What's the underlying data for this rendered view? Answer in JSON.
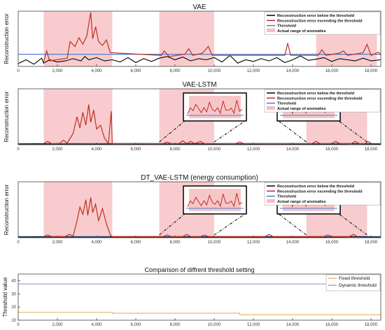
{
  "chart_data": [
    {
      "type": "line",
      "title": "VAE",
      "xlabel": "",
      "ylabel": "Reconstruction error",
      "xlim": [
        0,
        18500
      ],
      "ylim": [
        0,
        1.0
      ],
      "xticks": [
        0,
        2000,
        4000,
        6000,
        8000,
        10000,
        12000,
        14000,
        16000,
        18000
      ],
      "xtick_labels": [
        "0",
        "2,000",
        "4,000",
        "6,000",
        "8,000",
        "10,000",
        "12,000",
        "14,000",
        "16,000",
        "18,000"
      ],
      "legend_position": "top-right",
      "legend": [
        {
          "label": "Reconstruction error below the threshold",
          "color": "#000000",
          "kind": "line"
        },
        {
          "label": "Reconstruction error exceeding the threshold",
          "color": "#c0301f",
          "kind": "line"
        },
        {
          "label": "Threshold",
          "color": "#4a7fd4",
          "kind": "line"
        },
        {
          "label": "Actual range of anomalies",
          "color": "#f4bcc0",
          "kind": "patch"
        }
      ],
      "threshold": 0.22,
      "anomaly_ranges": [
        [
          1300,
          4800
        ],
        [
          7200,
          10000
        ],
        [
          15200,
          18300
        ]
      ],
      "below_series": [
        [
          0,
          0.05
        ],
        [
          400,
          0.12
        ],
        [
          800,
          0.04
        ],
        [
          1200,
          0.15
        ],
        [
          1300,
          0.06
        ],
        [
          1600,
          0.12
        ],
        [
          2000,
          0.08
        ],
        [
          2400,
          0.1
        ],
        [
          2800,
          0.14
        ],
        [
          3200,
          0.1
        ],
        [
          3400,
          0.18
        ],
        [
          3600,
          0.12
        ],
        [
          4000,
          0.16
        ],
        [
          4400,
          0.1
        ],
        [
          4800,
          0.12
        ],
        [
          5200,
          0.08
        ],
        [
          5600,
          0.16
        ],
        [
          6000,
          0.07
        ],
        [
          6400,
          0.14
        ],
        [
          6800,
          0.09
        ],
        [
          7200,
          0.15
        ],
        [
          7600,
          0.18
        ],
        [
          8000,
          0.12
        ],
        [
          8400,
          0.17
        ],
        [
          8800,
          0.1
        ],
        [
          9200,
          0.14
        ],
        [
          9600,
          0.12
        ],
        [
          10000,
          0.16
        ],
        [
          10400,
          0.08
        ],
        [
          10800,
          0.2
        ],
        [
          11200,
          0.06
        ],
        [
          11600,
          0.12
        ],
        [
          12000,
          0.09
        ],
        [
          12400,
          0.14
        ],
        [
          12800,
          0.1
        ],
        [
          13200,
          0.16
        ],
        [
          13600,
          0.07
        ],
        [
          14000,
          0.12
        ],
        [
          14400,
          0.19
        ],
        [
          14800,
          0.11
        ],
        [
          15200,
          0.13
        ],
        [
          15600,
          0.16
        ],
        [
          16000,
          0.09
        ],
        [
          16400,
          0.14
        ],
        [
          16800,
          0.12
        ],
        [
          17200,
          0.1
        ],
        [
          17600,
          0.15
        ],
        [
          18000,
          0.1
        ],
        [
          18500,
          0.12
        ]
      ],
      "above_series": [
        [
          1300,
          0.08
        ],
        [
          1450,
          0.28
        ],
        [
          1600,
          0.1
        ],
        [
          2500,
          0.15
        ],
        [
          2650,
          0.45
        ],
        [
          2900,
          0.36
        ],
        [
          3100,
          0.52
        ],
        [
          3300,
          0.4
        ],
        [
          3500,
          0.55
        ],
        [
          3700,
          0.98
        ],
        [
          3800,
          0.5
        ],
        [
          3950,
          0.72
        ],
        [
          4100,
          0.45
        ],
        [
          4300,
          0.38
        ],
        [
          4500,
          0.48
        ],
        [
          4700,
          0.25
        ],
        [
          7300,
          0.2
        ],
        [
          7450,
          0.28
        ],
        [
          7700,
          0.18
        ],
        [
          8500,
          0.22
        ],
        [
          8700,
          0.32
        ],
        [
          8900,
          0.2
        ],
        [
          9400,
          0.24
        ],
        [
          9700,
          0.36
        ],
        [
          9900,
          0.2
        ],
        [
          13600,
          0.2
        ],
        [
          13750,
          0.42
        ],
        [
          13900,
          0.2
        ],
        [
          15300,
          0.2
        ],
        [
          15500,
          0.3
        ],
        [
          15700,
          0.2
        ],
        [
          16400,
          0.24
        ],
        [
          16600,
          0.28
        ],
        [
          16800,
          0.2
        ],
        [
          17600,
          0.25
        ],
        [
          17800,
          0.4
        ],
        [
          18000,
          0.2
        ],
        [
          18400,
          0.26
        ],
        [
          18500,
          0.2
        ]
      ]
    },
    {
      "type": "line",
      "title": "VAE-LSTM",
      "xlabel": "",
      "ylabel": "Reconstruction error",
      "xlim": [
        0,
        18500
      ],
      "ylim": [
        0,
        1.0
      ],
      "xticks": [
        0,
        2000,
        4000,
        6000,
        8000,
        10000,
        12000,
        14000,
        16000,
        18000
      ],
      "xtick_labels": [
        "0",
        "2,000",
        "4,000",
        "6,000",
        "8,000",
        "10,000",
        "12,000",
        "14,000",
        "16,000",
        "18,000"
      ],
      "legend_position": "top-right",
      "legend": [
        {
          "label": "Reconstruction error below the threshold",
          "color": "#000000",
          "kind": "line"
        },
        {
          "label": "Reconstruction error exceeding the threshold",
          "color": "#c0301f",
          "kind": "line"
        },
        {
          "label": "Threshold",
          "color": "#4a7fd4",
          "kind": "line"
        },
        {
          "label": "Actual range of anomalies",
          "color": "#f4bcc0",
          "kind": "patch"
        }
      ],
      "threshold": 0.02,
      "anomaly_ranges": [
        [
          1300,
          4800
        ],
        [
          7200,
          10000
        ],
        [
          14700,
          17800
        ]
      ],
      "below_series": [
        [
          0,
          0.01
        ],
        [
          1000,
          0.015
        ],
        [
          2000,
          0.01
        ],
        [
          3000,
          0.012
        ],
        [
          4000,
          0.01
        ],
        [
          5000,
          0.015
        ],
        [
          6000,
          0.01
        ],
        [
          7000,
          0.012
        ],
        [
          8000,
          0.01
        ],
        [
          9000,
          0.015
        ],
        [
          10000,
          0.01
        ],
        [
          11000,
          0.012
        ],
        [
          12000,
          0.01
        ],
        [
          13000,
          0.015
        ],
        [
          14000,
          0.01
        ],
        [
          15000,
          0.012
        ],
        [
          16000,
          0.01
        ],
        [
          17000,
          0.015
        ],
        [
          18500,
          0.01
        ]
      ],
      "above_series": [
        [
          1300,
          0.02
        ],
        [
          1500,
          0.06
        ],
        [
          1700,
          0.02
        ],
        [
          2100,
          0.02
        ],
        [
          2300,
          0.08
        ],
        [
          2500,
          0.03
        ],
        [
          2800,
          0.2
        ],
        [
          3000,
          0.5
        ],
        [
          3150,
          0.3
        ],
        [
          3300,
          0.58
        ],
        [
          3450,
          0.35
        ],
        [
          3600,
          0.72
        ],
        [
          3700,
          0.4
        ],
        [
          3850,
          0.62
        ],
        [
          4000,
          0.28
        ],
        [
          4200,
          0.35
        ],
        [
          4400,
          0.12
        ],
        [
          4600,
          0.02
        ],
        [
          4750,
          0.6
        ],
        [
          4800,
          0.02
        ],
        [
          7400,
          0.02
        ],
        [
          7600,
          0.05
        ],
        [
          7800,
          0.02
        ],
        [
          8200,
          0.02
        ],
        [
          8400,
          0.07
        ],
        [
          8600,
          0.02
        ],
        [
          8800,
          0.06
        ],
        [
          9000,
          0.02
        ],
        [
          9300,
          0.06
        ],
        [
          9500,
          0.02
        ],
        [
          11100,
          0.02
        ],
        [
          11300,
          0.05
        ],
        [
          11500,
          0.02
        ],
        [
          15000,
          0.02
        ],
        [
          15200,
          0.06
        ],
        [
          15400,
          0.02
        ],
        [
          16000,
          0.02
        ],
        [
          16200,
          0.06
        ],
        [
          16400,
          0.02
        ],
        [
          17000,
          0.02
        ],
        [
          17200,
          0.06
        ],
        [
          17400,
          0.02
        ],
        [
          17700,
          0.02
        ],
        [
          17850,
          0.06
        ],
        [
          18000,
          0.02
        ]
      ],
      "insets": [
        {
          "x_from": 7200,
          "x_to": 10000
        },
        {
          "x_from": 14700,
          "x_to": 17800
        }
      ]
    },
    {
      "type": "line",
      "title": "DT_VAE-LSTM (energy consumption)",
      "xlabel": "",
      "ylabel": "Reconstruction error",
      "xlim": [
        0,
        18500
      ],
      "ylim": [
        0,
        1.0
      ],
      "xticks": [
        0,
        2000,
        4000,
        6000,
        8000,
        10000,
        12000,
        14000,
        16000,
        18000
      ],
      "xtick_labels": [
        "0",
        "2,000",
        "4,000",
        "6,000",
        "8,000",
        "10,000",
        "12,000",
        "14,000",
        "16,000",
        "18,000"
      ],
      "legend_position": "top-right",
      "legend": [
        {
          "label": "Reconstruction error below the threshold",
          "color": "#000000",
          "kind": "line"
        },
        {
          "label": "Reconstruction error exceeding the threshold",
          "color": "#c0301f",
          "kind": "line"
        },
        {
          "label": "Threshold",
          "color": "#4a7fd4",
          "kind": "line"
        },
        {
          "label": "Actual range of anomalies",
          "color": "#f4bcc0",
          "kind": "patch"
        }
      ],
      "threshold": 0.02,
      "anomaly_ranges": [
        [
          1300,
          4800
        ],
        [
          7200,
          10000
        ],
        [
          14700,
          17800
        ]
      ],
      "below_series": [
        [
          0,
          0.01
        ],
        [
          1000,
          0.015
        ],
        [
          2000,
          0.01
        ],
        [
          3000,
          0.012
        ],
        [
          4000,
          0.01
        ],
        [
          5000,
          0.015
        ],
        [
          6000,
          0.01
        ],
        [
          7000,
          0.012
        ],
        [
          8000,
          0.01
        ],
        [
          9000,
          0.015
        ],
        [
          10000,
          0.01
        ],
        [
          11000,
          0.012
        ],
        [
          12000,
          0.01
        ],
        [
          13000,
          0.015
        ],
        [
          14000,
          0.01
        ],
        [
          15000,
          0.012
        ],
        [
          16000,
          0.01
        ],
        [
          17000,
          0.015
        ],
        [
          18500,
          0.01
        ]
      ],
      "above_series": [
        [
          1300,
          0.02
        ],
        [
          1500,
          0.05
        ],
        [
          1700,
          0.02
        ],
        [
          2400,
          0.02
        ],
        [
          2600,
          0.06
        ],
        [
          2800,
          0.03
        ],
        [
          3000,
          0.3
        ],
        [
          3150,
          0.55
        ],
        [
          3300,
          0.42
        ],
        [
          3450,
          0.68
        ],
        [
          3550,
          0.4
        ],
        [
          3700,
          0.72
        ],
        [
          3800,
          0.45
        ],
        [
          3950,
          0.6
        ],
        [
          4100,
          0.3
        ],
        [
          4300,
          0.52
        ],
        [
          4500,
          0.25
        ],
        [
          4700,
          0.05
        ],
        [
          4800,
          0.02
        ],
        [
          7400,
          0.02
        ],
        [
          7600,
          0.05
        ],
        [
          7800,
          0.02
        ],
        [
          8400,
          0.02
        ],
        [
          8600,
          0.06
        ],
        [
          8800,
          0.02
        ],
        [
          9300,
          0.02
        ],
        [
          9500,
          0.05
        ],
        [
          9700,
          0.02
        ],
        [
          12600,
          0.02
        ],
        [
          12800,
          0.06
        ],
        [
          13000,
          0.02
        ],
        [
          15600,
          0.02
        ],
        [
          15800,
          0.05
        ],
        [
          16000,
          0.02
        ],
        [
          16900,
          0.02
        ],
        [
          17100,
          0.06
        ],
        [
          17300,
          0.02
        ]
      ],
      "insets": [
        {
          "x_from": 7200,
          "x_to": 10000
        },
        {
          "x_from": 14700,
          "x_to": 17800
        }
      ]
    },
    {
      "type": "line",
      "title": "Comparison of diffrent threshold setting",
      "xlabel": "",
      "ylabel": "Threshold value",
      "xlim": [
        0,
        18500
      ],
      "ylim": [
        10,
        45
      ],
      "yticks": [
        10,
        20,
        30,
        40
      ],
      "xticks": [
        0,
        2000,
        4000,
        6000,
        8000,
        10000,
        12000,
        14000,
        16000,
        18000
      ],
      "xtick_labels": [
        "0",
        "2,000",
        "4,000",
        "6,000",
        "8,000",
        "10,000",
        "12,000",
        "14,000",
        "16,000",
        "18,000"
      ],
      "legend_position": "top-right",
      "legend": [
        {
          "label": "Fixed threshold",
          "color": "#e8b96a",
          "kind": "line"
        },
        {
          "label": "Dynamic threshold",
          "color": "#b79ad6",
          "kind": "line"
        }
      ],
      "series": [
        {
          "name": "Fixed threshold",
          "color": "#e8b96a",
          "points": [
            [
              0,
              16
            ],
            [
              4800,
              16
            ],
            [
              4800,
              15.3
            ],
            [
              11300,
              15.3
            ],
            [
              11300,
              14.2
            ],
            [
              18500,
              14.2
            ]
          ]
        },
        {
          "name": "Dynamic threshold",
          "color": "#b79ad6",
          "points": [
            [
              0,
              37.5
            ],
            [
              18500,
              37.5
            ]
          ]
        }
      ]
    }
  ]
}
